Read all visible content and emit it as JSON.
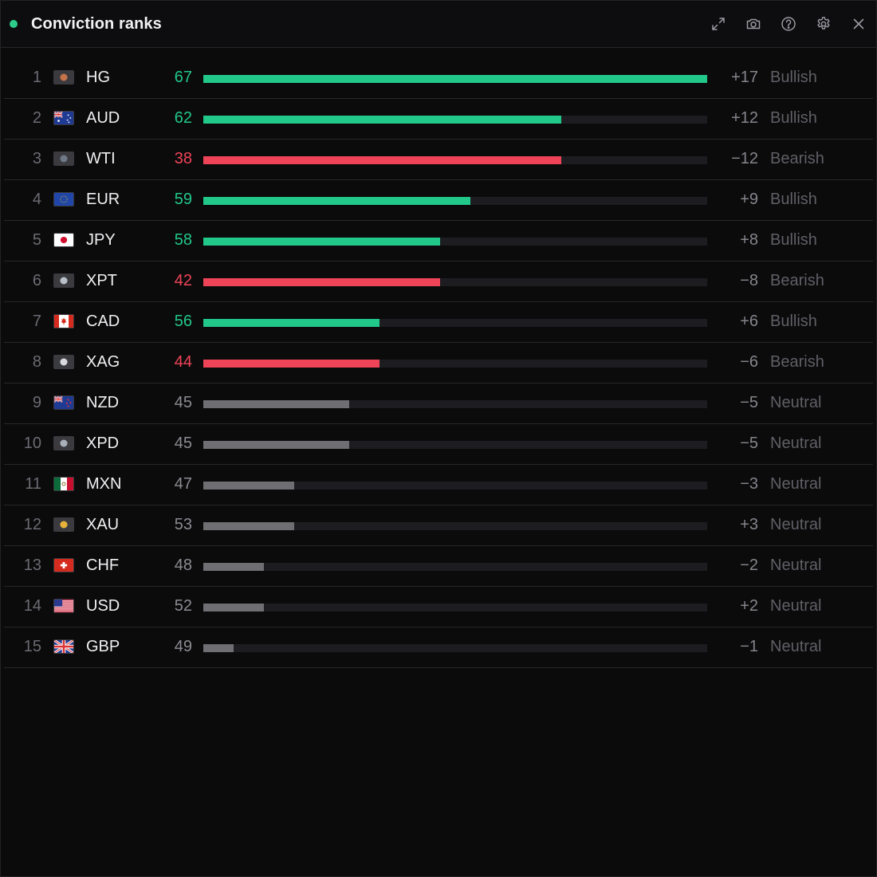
{
  "window": {
    "title": "Conviction ranks",
    "status_color": "#2ecc8a",
    "tools": [
      {
        "icon": "expand-icon"
      },
      {
        "icon": "camera-icon"
      },
      {
        "icon": "help-icon"
      },
      {
        "icon": "gear-icon"
      },
      {
        "icon": "close-icon"
      }
    ]
  },
  "colors": {
    "bullish": "#22c78a",
    "bearish": "#ef4458",
    "neutral": "#6e6e73",
    "neutral_text": "#8b8b92"
  },
  "rows": [
    {
      "rank": "1",
      "symbol": "HG",
      "flag": "copper",
      "score": "67",
      "delta": "+17",
      "bias": "Bullish",
      "fill": 1.0
    },
    {
      "rank": "2",
      "symbol": "AUD",
      "flag": "au",
      "score": "62",
      "delta": "+12",
      "bias": "Bullish",
      "fill": 0.71
    },
    {
      "rank": "3",
      "symbol": "WTI",
      "flag": "oil",
      "score": "38",
      "delta": "−12",
      "bias": "Bearish",
      "fill": 0.71
    },
    {
      "rank": "4",
      "symbol": "EUR",
      "flag": "eu",
      "score": "59",
      "delta": "+9",
      "bias": "Bullish",
      "fill": 0.53
    },
    {
      "rank": "5",
      "symbol": "JPY",
      "flag": "jp",
      "score": "58",
      "delta": "+8",
      "bias": "Bullish",
      "fill": 0.47
    },
    {
      "rank": "6",
      "symbol": "XPT",
      "flag": "platinum",
      "score": "42",
      "delta": "−8",
      "bias": "Bearish",
      "fill": 0.47
    },
    {
      "rank": "7",
      "symbol": "CAD",
      "flag": "ca",
      "score": "56",
      "delta": "+6",
      "bias": "Bullish",
      "fill": 0.35
    },
    {
      "rank": "8",
      "symbol": "XAG",
      "flag": "silver",
      "score": "44",
      "delta": "−6",
      "bias": "Bearish",
      "fill": 0.35
    },
    {
      "rank": "9",
      "symbol": "NZD",
      "flag": "nz",
      "score": "45",
      "delta": "−5",
      "bias": "Neutral",
      "fill": 0.29
    },
    {
      "rank": "10",
      "symbol": "XPD",
      "flag": "palladium",
      "score": "45",
      "delta": "−5",
      "bias": "Neutral",
      "fill": 0.29
    },
    {
      "rank": "11",
      "symbol": "MXN",
      "flag": "mx",
      "score": "47",
      "delta": "−3",
      "bias": "Neutral",
      "fill": 0.18
    },
    {
      "rank": "12",
      "symbol": "XAU",
      "flag": "gold",
      "score": "53",
      "delta": "+3",
      "bias": "Neutral",
      "fill": 0.18
    },
    {
      "rank": "13",
      "symbol": "CHF",
      "flag": "ch",
      "score": "48",
      "delta": "−2",
      "bias": "Neutral",
      "fill": 0.12
    },
    {
      "rank": "14",
      "symbol": "USD",
      "flag": "us",
      "score": "52",
      "delta": "+2",
      "bias": "Neutral",
      "fill": 0.12
    },
    {
      "rank": "15",
      "symbol": "GBP",
      "flag": "gb",
      "score": "49",
      "delta": "−1",
      "bias": "Neutral",
      "fill": 0.06
    }
  ]
}
